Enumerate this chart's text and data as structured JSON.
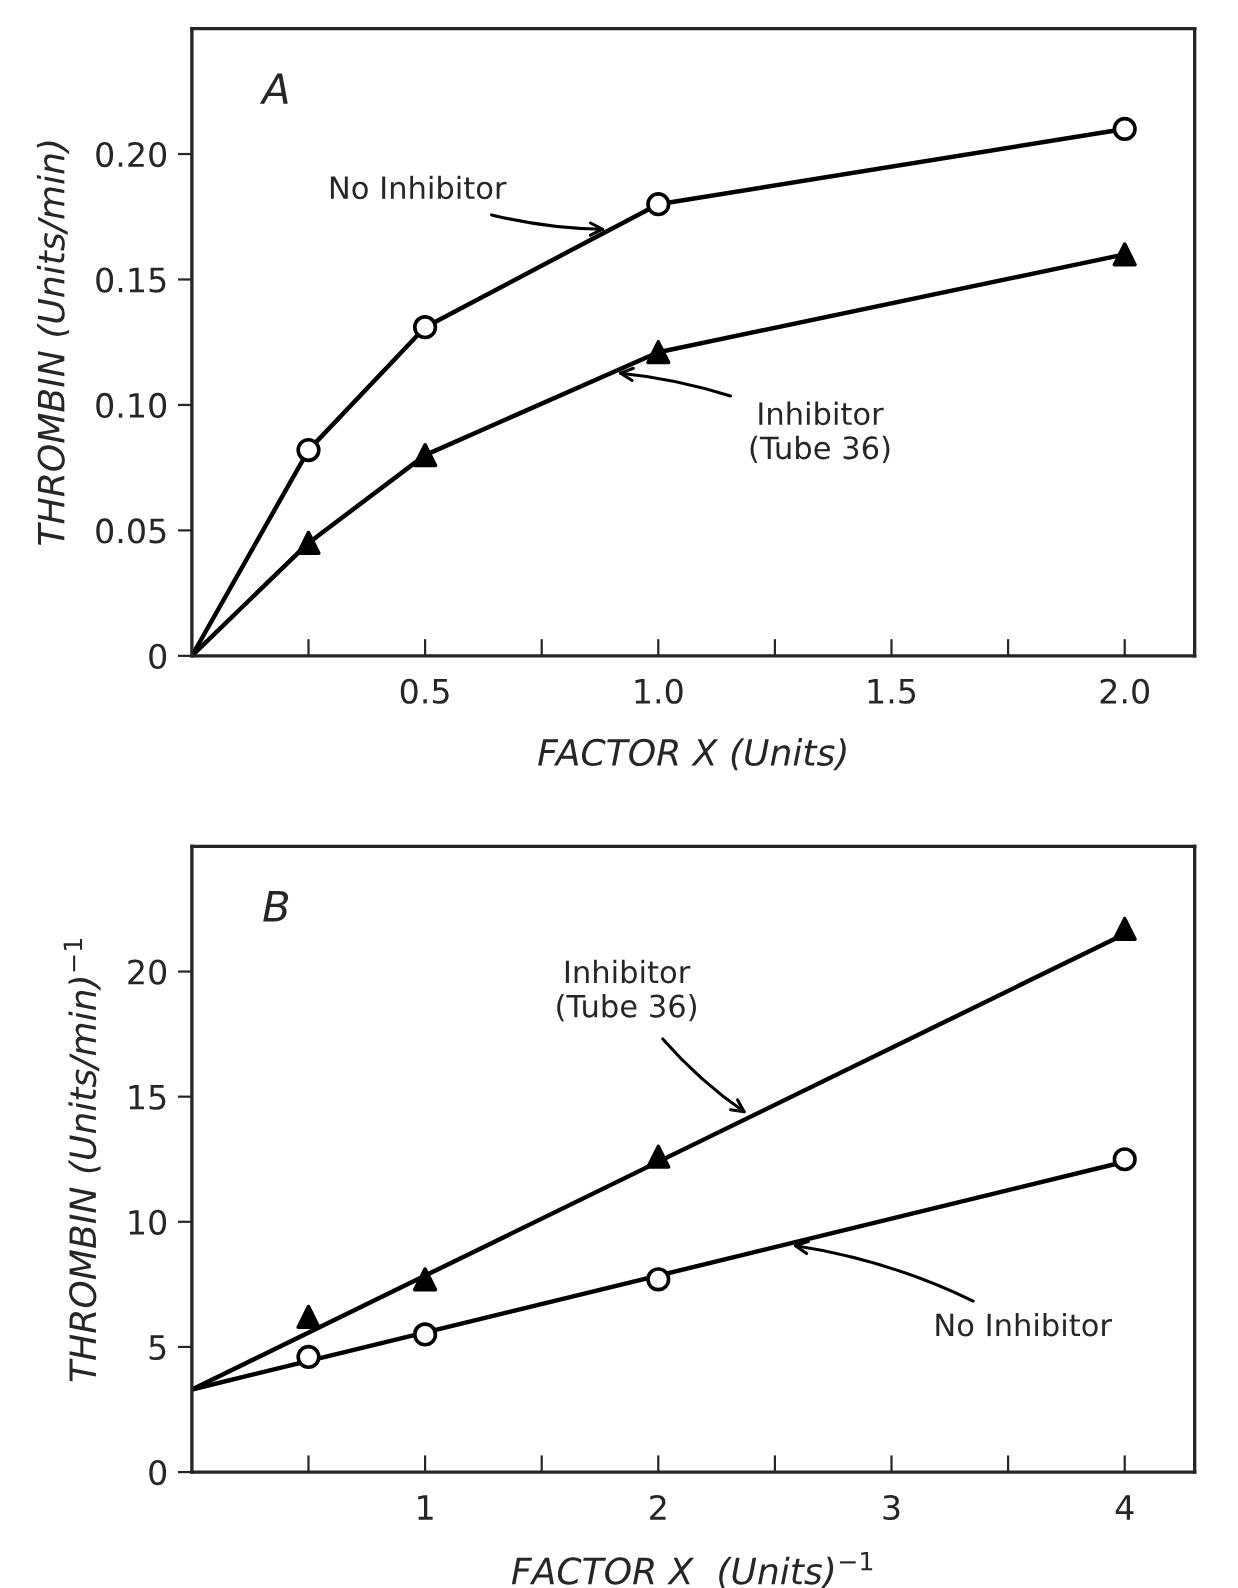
{
  "chart_data": [
    {
      "type": "line",
      "xlabel": "FACTOR X (Units)",
      "ylabel": "THROMBIN (Units/min)",
      "xlim": [
        0,
        2.15
      ],
      "ylim": [
        0,
        0.25
      ],
      "xticks": [
        {
          "value": 0.25,
          "label": null
        },
        0.5,
        {
          "value": 0.75,
          "label": null
        },
        {
          "value": 1.0,
          "label": "1.0"
        },
        {
          "value": 1.25,
          "label": null
        },
        1.5,
        {
          "value": 1.75,
          "label": null
        },
        {
          "value": 2.0,
          "label": "2.0"
        }
      ],
      "yticks": [
        0,
        0.05,
        {
          "value": 0.1,
          "label": "0.10"
        },
        0.15,
        {
          "value": 0.2,
          "label": "0.20"
        }
      ],
      "grid": false,
      "legend": false,
      "series": [
        {
          "color": "#000000",
          "marker": "none",
          "x": [
            0,
            0.25,
            0.5,
            1.0,
            2.0
          ],
          "values": [
            0,
            0.082,
            0.131,
            0.18,
            0.21
          ]
        },
        {
          "color": "#000000",
          "marker": "none",
          "x": [
            0,
            0.25,
            0.5,
            1.0,
            2.0
          ],
          "values": [
            0,
            0.045,
            0.08,
            0.121,
            0.16
          ]
        },
        {
          "type": "scatter",
          "color": "#000000",
          "marker": "circle",
          "x": [
            0.25,
            0.5,
            1.0,
            2.0
          ],
          "values": [
            0.082,
            0.131,
            0.18,
            0.21
          ]
        },
        {
          "type": "scatter",
          "color": "#000000",
          "marker": "triangle",
          "x": [
            0.25,
            0.5,
            1.0,
            2.0
          ],
          "values": [
            0.045,
            0.08,
            0.121,
            0.16
          ]
        }
      ],
      "annotations": [
        "A",
        {
          "text": "No Inhibitor",
          "x": 0.9,
          "y": 0.17
        },
        {
          "text": "Inhibitor\n(Tube 36)",
          "x": 0.9,
          "y": 0.113
        }
      ]
    },
    {
      "type": "line",
      "xlabel": "FACTOR X  (Units)$^{−1}$",
      "ylabel": "THROMBIN (Units/min)$^{−1}$",
      "xlim": [
        0,
        4.3
      ],
      "ylim": [
        0,
        25
      ],
      "xticks": [
        {
          "value": 0.5,
          "label": null
        },
        1,
        {
          "value": 1.5,
          "label": null
        },
        2,
        {
          "value": 2.5,
          "label": null
        },
        3,
        {
          "value": 3.5,
          "label": null
        },
        4
      ],
      "yticks": [
        0,
        5,
        10,
        15,
        20
      ],
      "grid": false,
      "legend": false,
      "series": [
        {
          "color": "#000000",
          "marker": "none",
          "x": [
            0,
            4
          ],
          "values": [
            3.3,
            21.5
          ]
        },
        {
          "color": "#000000",
          "marker": "none",
          "x": [
            0,
            4
          ],
          "values": [
            3.3,
            12.4
          ]
        },
        {
          "type": "scatter",
          "color": "#000000",
          "marker": "triangle",
          "x": [
            0.5,
            1,
            2,
            4
          ],
          "values": [
            6.2,
            7.7,
            12.6,
            21.7
          ]
        },
        {
          "type": "scatter",
          "color": "#000000",
          "marker": "circle",
          "x": [
            0.5,
            1,
            2,
            4
          ],
          "values": [
            4.6,
            5.5,
            7.7,
            12.5
          ]
        }
      ],
      "annotations": [
        "B",
        {
          "text": "Inhibitor\n(Tube 36)",
          "x": 2.4,
          "y": 14.2
        },
        {
          "text": "No Inhibitor",
          "x": 2.55,
          "y": 9.1
        }
      ]
    }
  ]
}
